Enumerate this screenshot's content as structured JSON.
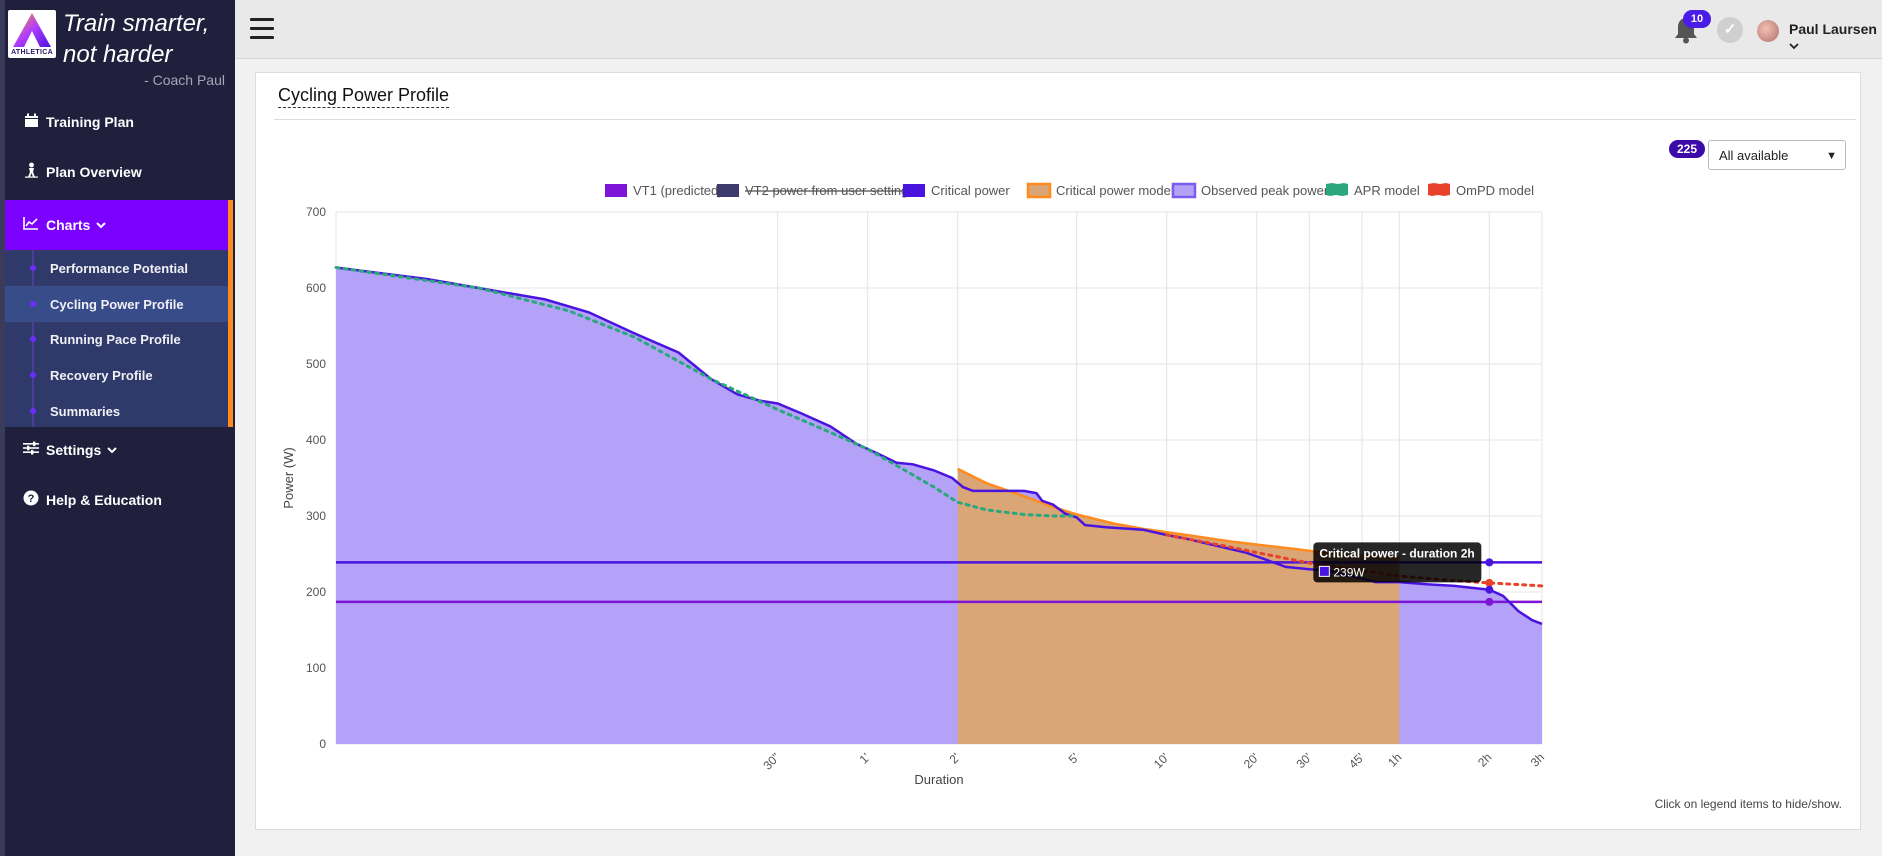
{
  "sidebar": {
    "tagline_line1": "Train smarter,",
    "tagline_line2": "not harder",
    "coach": "- Coach Paul",
    "logo_text": "ATHLETICA",
    "items": [
      {
        "label": "Training Plan",
        "icon": "calendar-icon"
      },
      {
        "label": "Plan Overview",
        "icon": "person-icon"
      },
      {
        "label": "Charts",
        "icon": "chart-icon"
      },
      {
        "label": "Settings",
        "icon": "sliders-icon"
      },
      {
        "label": "Help & Education",
        "icon": "question-icon"
      }
    ],
    "submenu": [
      {
        "label": "Performance Potential"
      },
      {
        "label": "Cycling Power Profile"
      },
      {
        "label": "Running Pace Profile"
      },
      {
        "label": "Recovery Profile"
      },
      {
        "label": "Summaries"
      }
    ]
  },
  "topbar": {
    "notifications": "10",
    "user_name": "Paul Laursen"
  },
  "card": {
    "title": "Cycling Power Profile",
    "count_badge": "225",
    "filter_value": "All available",
    "hint": "Click on legend items to hide/show."
  },
  "colors": {
    "accent": "#7b00ff",
    "orange": "#ff8a1e",
    "vt1": "#7f14d9",
    "critical_power": "#4a14e0",
    "observed_fill": "#b3a2f7",
    "cp_model_fill": "#dba676",
    "apr": "#2aa77d",
    "ompd": "#e8432a"
  },
  "chart_data": {
    "type": "area",
    "xlabel": "Duration",
    "ylabel": "Power (W)",
    "ylim": [
      0,
      700
    ],
    "yticks": [
      0,
      100,
      200,
      300,
      400,
      500,
      600,
      700
    ],
    "xscale": "log",
    "xlim_seconds": [
      1,
      10800
    ],
    "xticks": [
      {
        "label": "30\"",
        "s": 30
      },
      {
        "label": "1'",
        "s": 60
      },
      {
        "label": "2'",
        "s": 120
      },
      {
        "label": "5'",
        "s": 300
      },
      {
        "label": "10'",
        "s": 600
      },
      {
        "label": "20'",
        "s": 1200
      },
      {
        "label": "30'",
        "s": 1800
      },
      {
        "label": "45'",
        "s": 2700
      },
      {
        "label": "1h",
        "s": 3600
      },
      {
        "label": "2h",
        "s": 7200
      },
      {
        "label": "3h",
        "s": 10800
      }
    ],
    "legend": [
      {
        "name": "VT1 (predicted)",
        "color": "#7f14d9",
        "hidden": false
      },
      {
        "name": "VT2 power from user settings",
        "color": "#3d3a6e",
        "hidden": true
      },
      {
        "name": "Critical power",
        "color": "#4a14e0",
        "hidden": false
      },
      {
        "name": "Critical power model",
        "color": "#ff8a1e",
        "hidden": false
      },
      {
        "name": "Observed peak power",
        "color": "#7b5cf0",
        "hidden": false
      },
      {
        "name": "APR model",
        "color": "#2aa77d",
        "hidden": false
      },
      {
        "name": "OmPD model",
        "color": "#e8432a",
        "hidden": false
      }
    ],
    "series": [
      {
        "name": "VT1 (predicted)",
        "constant": 187
      },
      {
        "name": "Critical power",
        "constant": 239
      },
      {
        "name": "Observed peak power",
        "points": [
          [
            1,
            627
          ],
          [
            2,
            612
          ],
          [
            3,
            600
          ],
          [
            5,
            585
          ],
          [
            7,
            568
          ],
          [
            10,
            540
          ],
          [
            14,
            515
          ],
          [
            18,
            480
          ],
          [
            22,
            460
          ],
          [
            26,
            452
          ],
          [
            30,
            448
          ],
          [
            36,
            435
          ],
          [
            45,
            418
          ],
          [
            55,
            395
          ],
          [
            65,
            382
          ],
          [
            75,
            370
          ],
          [
            85,
            368
          ],
          [
            100,
            360
          ],
          [
            115,
            350
          ],
          [
            125,
            338
          ],
          [
            135,
            333
          ],
          [
            160,
            333
          ],
          [
            200,
            333
          ],
          [
            220,
            330
          ],
          [
            230,
            320
          ],
          [
            250,
            315
          ],
          [
            275,
            303
          ],
          [
            300,
            298
          ],
          [
            320,
            288
          ],
          [
            380,
            285
          ],
          [
            500,
            282
          ],
          [
            600,
            275
          ],
          [
            700,
            270
          ],
          [
            900,
            260
          ],
          [
            1100,
            252
          ],
          [
            1300,
            242
          ],
          [
            1500,
            233
          ],
          [
            1800,
            230
          ],
          [
            2100,
            228
          ],
          [
            2400,
            222
          ],
          [
            2700,
            218
          ],
          [
            3000,
            213
          ],
          [
            3600,
            213
          ],
          [
            4500,
            210
          ],
          [
            5500,
            208
          ],
          [
            7200,
            203
          ],
          [
            8000,
            195
          ],
          [
            9000,
            175
          ],
          [
            10000,
            163
          ],
          [
            10800,
            158
          ]
        ]
      },
      {
        "name": "Critical power model",
        "points": [
          [
            120,
            362
          ],
          [
            150,
            343
          ],
          [
            200,
            326
          ],
          [
            250,
            312
          ],
          [
            300,
            302
          ],
          [
            400,
            290
          ],
          [
            500,
            283
          ],
          [
            700,
            275
          ],
          [
            1000,
            266
          ],
          [
            1500,
            258
          ],
          [
            2000,
            252
          ],
          [
            2700,
            248
          ],
          [
            3600,
            245
          ]
        ]
      },
      {
        "name": "APR model",
        "points": [
          [
            1,
            627
          ],
          [
            3,
            600
          ],
          [
            6,
            570
          ],
          [
            10,
            535
          ],
          [
            18,
            480
          ],
          [
            30,
            440
          ],
          [
            45,
            410
          ],
          [
            60,
            388
          ],
          [
            80,
            360
          ],
          [
            100,
            338
          ],
          [
            120,
            318
          ],
          [
            150,
            308
          ],
          [
            200,
            302
          ],
          [
            250,
            300
          ],
          [
            300,
            300
          ]
        ]
      },
      {
        "name": "OmPD model",
        "points": [
          [
            600,
            275
          ],
          [
            900,
            262
          ],
          [
            1200,
            252
          ],
          [
            1800,
            238
          ],
          [
            2700,
            228
          ],
          [
            3600,
            221
          ],
          [
            5000,
            216
          ],
          [
            7200,
            212
          ],
          [
            10800,
            208
          ]
        ]
      }
    ],
    "tooltip": {
      "title": "Critical power - duration 2h",
      "value": "239W"
    }
  }
}
